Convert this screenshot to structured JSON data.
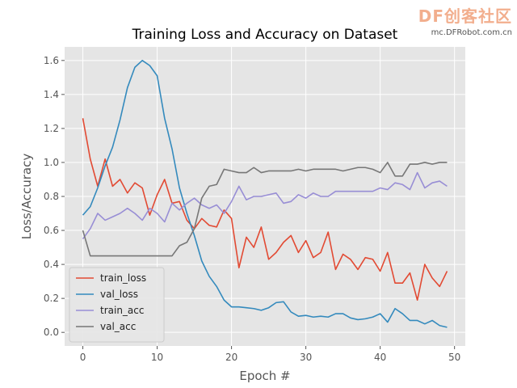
{
  "watermark": {
    "main": "DF创客社区",
    "sub": "mc.DFRobot.com.cn"
  },
  "chart_data": {
    "type": "line",
    "title": "Training Loss and Accuracy on Dataset",
    "xlabel": "Epoch #",
    "ylabel": "Loss/Accuracy",
    "xlim": [
      -2.45,
      51.45
    ],
    "ylim": [
      -0.08,
      1.68
    ],
    "xticks": [
      0,
      10,
      20,
      30,
      40,
      50
    ],
    "yticks": [
      0.0,
      0.2,
      0.4,
      0.6,
      0.8,
      1.0,
      1.2,
      1.4,
      1.6
    ],
    "grid": true,
    "legend_position": "lower-left",
    "x": [
      0,
      1,
      2,
      3,
      4,
      5,
      6,
      7,
      8,
      9,
      10,
      11,
      12,
      13,
      14,
      15,
      16,
      17,
      18,
      19,
      20,
      21,
      22,
      23,
      24,
      25,
      26,
      27,
      28,
      29,
      30,
      31,
      32,
      33,
      34,
      35,
      36,
      37,
      38,
      39,
      40,
      41,
      42,
      43,
      44,
      45,
      46,
      47,
      48,
      49
    ],
    "series": [
      {
        "name": "train_loss",
        "color": "#e24a33",
        "values": [
          1.26,
          1.02,
          0.86,
          1.02,
          0.86,
          0.9,
          0.82,
          0.88,
          0.85,
          0.69,
          0.81,
          0.9,
          0.76,
          0.77,
          0.66,
          0.61,
          0.67,
          0.63,
          0.62,
          0.72,
          0.67,
          0.38,
          0.56,
          0.5,
          0.62,
          0.43,
          0.47,
          0.53,
          0.57,
          0.47,
          0.54,
          0.44,
          0.47,
          0.59,
          0.37,
          0.46,
          0.43,
          0.37,
          0.44,
          0.43,
          0.36,
          0.47,
          0.29,
          0.29,
          0.35,
          0.19,
          0.4,
          0.32,
          0.27,
          0.36
        ]
      },
      {
        "name": "val_loss",
        "color": "#348abd",
        "values": [
          0.69,
          0.74,
          0.85,
          0.98,
          1.09,
          1.25,
          1.44,
          1.56,
          1.6,
          1.57,
          1.51,
          1.26,
          1.08,
          0.85,
          0.7,
          0.57,
          0.42,
          0.33,
          0.27,
          0.19,
          0.15,
          0.15,
          0.145,
          0.14,
          0.13,
          0.145,
          0.175,
          0.18,
          0.12,
          0.095,
          0.1,
          0.09,
          0.095,
          0.09,
          0.11,
          0.11,
          0.085,
          0.075,
          0.08,
          0.09,
          0.11,
          0.06,
          0.14,
          0.11,
          0.07,
          0.07,
          0.05,
          0.07,
          0.04,
          0.03
        ]
      },
      {
        "name": "train_acc",
        "color": "#988ed5",
        "values": [
          0.55,
          0.61,
          0.7,
          0.66,
          0.68,
          0.7,
          0.73,
          0.7,
          0.66,
          0.73,
          0.7,
          0.65,
          0.76,
          0.72,
          0.76,
          0.79,
          0.75,
          0.73,
          0.75,
          0.7,
          0.77,
          0.86,
          0.78,
          0.8,
          0.8,
          0.81,
          0.82,
          0.76,
          0.77,
          0.81,
          0.79,
          0.82,
          0.8,
          0.8,
          0.83,
          0.83,
          0.83,
          0.83,
          0.83,
          0.83,
          0.85,
          0.84,
          0.88,
          0.87,
          0.84,
          0.94,
          0.85,
          0.88,
          0.89,
          0.86
        ]
      },
      {
        "name": "val_acc",
        "color": "#777777",
        "values": [
          0.6,
          0.45,
          0.45,
          0.45,
          0.45,
          0.45,
          0.45,
          0.45,
          0.45,
          0.45,
          0.45,
          0.45,
          0.45,
          0.51,
          0.53,
          0.61,
          0.79,
          0.86,
          0.87,
          0.96,
          0.95,
          0.94,
          0.94,
          0.97,
          0.94,
          0.95,
          0.95,
          0.95,
          0.95,
          0.96,
          0.95,
          0.96,
          0.96,
          0.96,
          0.96,
          0.95,
          0.96,
          0.97,
          0.97,
          0.96,
          0.94,
          1.0,
          0.92,
          0.92,
          0.99,
          0.99,
          1.0,
          0.99,
          1.0,
          1.0
        ]
      }
    ]
  }
}
